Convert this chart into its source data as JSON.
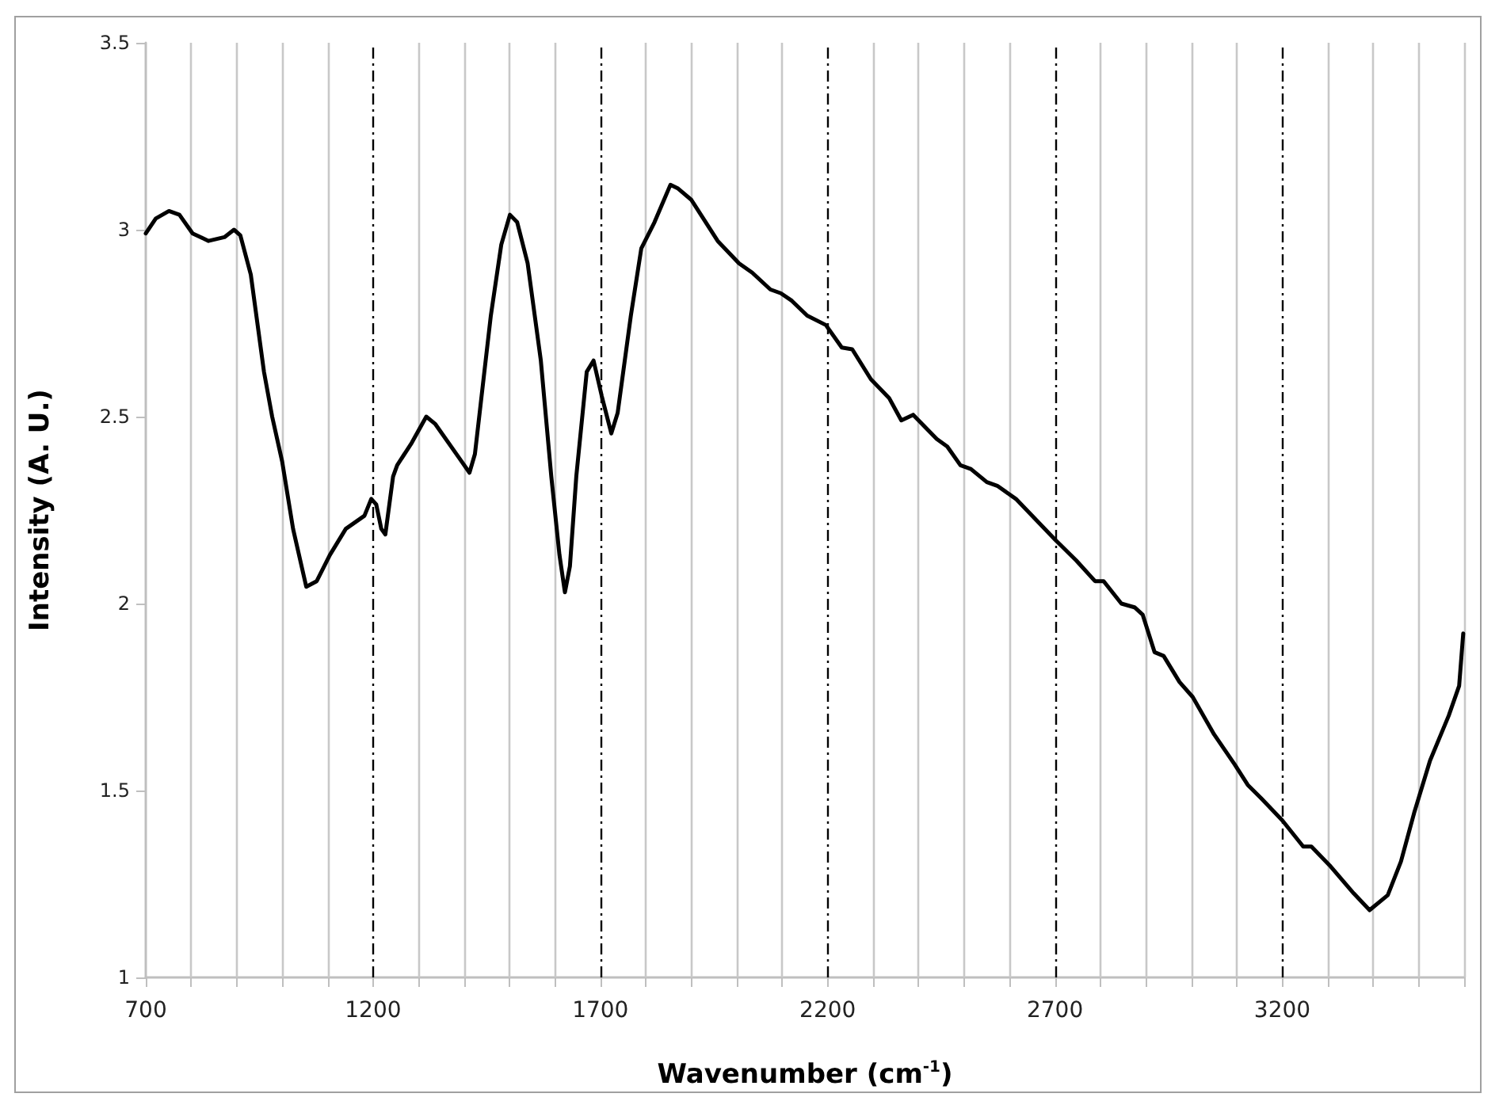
{
  "chart_data": {
    "type": "line",
    "xlabel": "Wavenumber (cm$^{-1}$)",
    "ylabel": "Intensity (A. U.)",
    "x": [
      700,
      722,
      751,
      774,
      803,
      838,
      873,
      894,
      908,
      931,
      960,
      978,
      1000,
      1024,
      1053,
      1076,
      1105,
      1140,
      1181,
      1196,
      1207,
      1218,
      1227,
      1244,
      1253,
      1285,
      1317,
      1337,
      1389,
      1412,
      1424,
      1459,
      1482,
      1501,
      1517,
      1540,
      1569,
      1592,
      1610,
      1622,
      1633,
      1647,
      1670,
      1685,
      1703,
      1724,
      1738,
      1767,
      1790,
      1819,
      1854,
      1871,
      1900,
      1958,
      2005,
      2034,
      2074,
      2097,
      2121,
      2155,
      2196,
      2231,
      2254,
      2295,
      2335,
      2362,
      2388,
      2440,
      2463,
      2492,
      2515,
      2550,
      2573,
      2614,
      2701,
      2747,
      2788,
      2807,
      2846,
      2875,
      2893,
      2919,
      2939,
      2974,
      3003,
      3050,
      3095,
      3124,
      3153,
      3200,
      3246,
      3264,
      3304,
      3357,
      3392,
      3432,
      3461,
      3490,
      3525,
      3566,
      3589,
      3598
    ],
    "series": [
      {
        "color": "#000000",
        "values": [
          2.99,
          3.03,
          3.05,
          3.04,
          2.99,
          2.97,
          2.98,
          3.0,
          2.985,
          2.88,
          2.62,
          2.5,
          2.38,
          2.2,
          2.045,
          2.06,
          2.13,
          2.2,
          2.235,
          2.28,
          2.265,
          2.2,
          2.185,
          2.34,
          2.37,
          2.43,
          2.5,
          2.48,
          2.39,
          2.35,
          2.4,
          2.77,
          2.96,
          3.04,
          3.02,
          2.91,
          2.65,
          2.34,
          2.13,
          2.03,
          2.1,
          2.34,
          2.62,
          2.65,
          2.555,
          2.455,
          2.51,
          2.77,
          2.95,
          3.02,
          3.12,
          3.11,
          3.08,
          2.97,
          2.91,
          2.885,
          2.84,
          2.83,
          2.81,
          2.77,
          2.745,
          2.685,
          2.68,
          2.6,
          2.55,
          2.49,
          2.505,
          2.44,
          2.42,
          2.37,
          2.36,
          2.325,
          2.315,
          2.28,
          2.17,
          2.115,
          2.06,
          2.06,
          2.0,
          1.99,
          1.97,
          1.87,
          1.86,
          1.79,
          1.75,
          1.65,
          1.57,
          1.515,
          1.48,
          1.42,
          1.35,
          1.35,
          1.3,
          1.225,
          1.18,
          1.22,
          1.31,
          1.44,
          1.58,
          1.7,
          1.78,
          1.92
        ]
      }
    ],
    "xlim": [
      700,
      3600
    ],
    "xticks": [
      700,
      {
        "value": 800,
        "label": null
      },
      {
        "value": 900,
        "label": null
      },
      {
        "value": 1000,
        "label": null
      },
      {
        "value": 1100,
        "label": null
      },
      1200,
      {
        "value": 1300,
        "label": null
      },
      {
        "value": 1400,
        "label": null
      },
      {
        "value": 1500,
        "label": null
      },
      {
        "value": 1600,
        "label": null
      },
      1700,
      {
        "value": 1800,
        "label": null
      },
      {
        "value": 1900,
        "label": null
      },
      {
        "value": 2000,
        "label": null
      },
      {
        "value": 2100,
        "label": null
      },
      2200,
      {
        "value": 2300,
        "label": null
      },
      {
        "value": 2400,
        "label": null
      },
      {
        "value": 2500,
        "label": null
      },
      {
        "value": 2600,
        "label": null
      },
      2700,
      {
        "value": 2800,
        "label": null
      },
      {
        "value": 2900,
        "label": null
      },
      {
        "value": 3000,
        "label": null
      },
      {
        "value": 3100,
        "label": null
      },
      3200,
      {
        "value": 3300,
        "label": null
      },
      {
        "value": 3400,
        "label": null
      },
      {
        "value": 3500,
        "label": null
      },
      {
        "value": 3600,
        "label": null
      }
    ],
    "ylim": [
      1,
      3.5
    ],
    "yticks": [
      1,
      1.5,
      2,
      2.5,
      3,
      3.5
    ],
    "grid": "x",
    "marker": "none",
    "line_style": "solid"
  }
}
